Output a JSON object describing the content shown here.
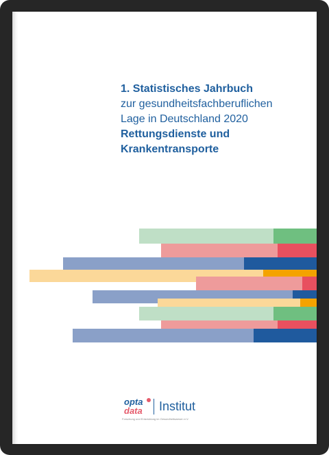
{
  "cover": {
    "title_line1": "1. Statistisches Jahrbuch",
    "title_line2": "zur gesundheitsfachberuflichen",
    "title_line3": "Lage in Deutschland 2020",
    "title_line4": "Rettungsdienste und",
    "title_line5": "Krankentransporte"
  },
  "logo": {
    "brand_top": "opta",
    "brand_bottom": "data",
    "institut": "Institut",
    "subtitle": "Forschung und Entwicklung im Gesundheitswesen e.V."
  },
  "colors": {
    "title_blue": "#1f5f9e",
    "light_green": "#bfdfc6",
    "green": "#6fbf80",
    "light_red": "#ee9b9b",
    "red": "#e8505f",
    "slate": "#8aa0c8",
    "navy": "#1f5a9e",
    "light_orange": "#fbd899",
    "orange": "#f4a300"
  }
}
